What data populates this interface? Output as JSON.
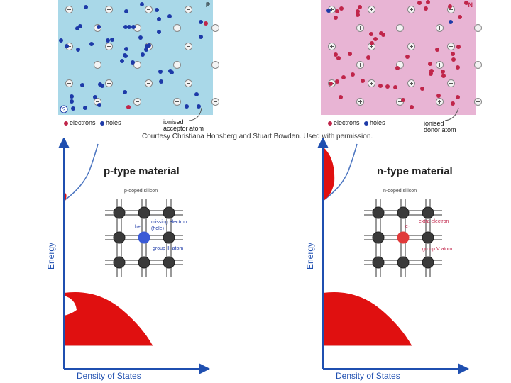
{
  "top_p": {
    "corner_label": "P",
    "legend_electrons": "electrons",
    "legend_holes": "holes",
    "ion_label_line1": "ionised",
    "ion_label_line2": "acceptor atom",
    "help_badge": "?"
  },
  "top_n": {
    "corner_label": "N",
    "legend_electrons": "electrons",
    "legend_holes": "holes",
    "ion_label_line1": "ionised",
    "ion_label_line2": "donor atom"
  },
  "courtesy": "Courtesy Christiana Honsberg and Stuart Bowden. Used with permission.",
  "p_diagram": {
    "title": "p-type material",
    "lattice_title": "p-doped silicon",
    "carrier_symbol": "h+",
    "callout_1": "missing electron",
    "callout_2": "(hole)",
    "callout_3": "group III atom",
    "y_axis": "Energy",
    "x_axis": "Density of States"
  },
  "n_diagram": {
    "title": "n-type material",
    "lattice_title": "n-doped silicon",
    "carrier_symbol": "e-",
    "callout_1": "extra electron",
    "callout_3": "group V atom",
    "y_axis": "Energy",
    "x_axis": "Density of States"
  },
  "colors": {
    "p_background": "#a9d8e8",
    "n_background": "#e8b4d4",
    "hole": "#1d3aa8",
    "electron": "#c0254a",
    "axis": "#1f4fb0",
    "band_fill": "#e01010"
  }
}
